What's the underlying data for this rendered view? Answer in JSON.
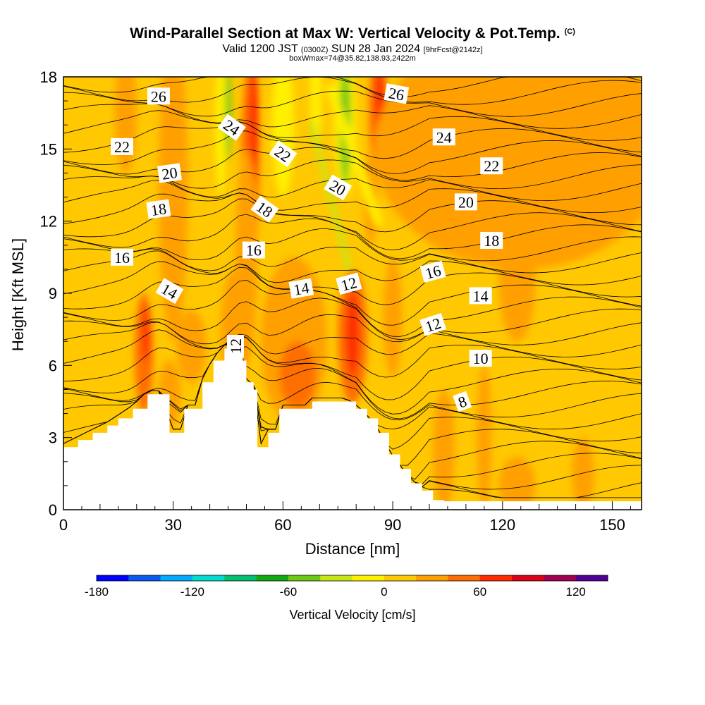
{
  "title": {
    "line1": "Wind-Parallel Section at Max W: Vertical Velocity & Pot.Temp.",
    "copyright": "(C)",
    "line2_main": "Valid 1200 JST ",
    "line2_small1": "(0300Z)",
    "line2_main2": " SUN 28 Jan 2024 ",
    "line2_small2": "[9hrFcst@2142z]",
    "line3": "boxWmax=74@35.82,138.93,2422m"
  },
  "chart_data": {
    "type": "heatmap",
    "xlabel": "Distance [nm]",
    "ylabel": "Height [Kft MSL]",
    "xlim": [
      0,
      158
    ],
    "ylim": [
      0,
      18
    ],
    "xticks": [
      0,
      30,
      60,
      90,
      120,
      150
    ],
    "yticks": [
      0,
      3,
      6,
      9,
      12,
      15,
      18
    ],
    "grid": false,
    "shaded_field": "Vertical Velocity [cm/s]",
    "contour_field": "Potential temperature",
    "colorbar": {
      "label": "Vertical Velocity [cm/s]",
      "ticks": [
        -180,
        -120,
        -60,
        0,
        60,
        120
      ],
      "bins": [
        -180,
        -160,
        -140,
        -120,
        -100,
        -80,
        -60,
        -40,
        -20,
        0,
        20,
        40,
        60,
        80,
        100,
        120,
        140
      ],
      "colors": [
        "#0000ff",
        "#0a5af0",
        "#00aaff",
        "#00ddd0",
        "#00c070",
        "#10aa10",
        "#6ec818",
        "#c8e614",
        "#fff000",
        "#ffc800",
        "#ffa000",
        "#ff6e00",
        "#ff2a00",
        "#dc0019",
        "#a00050",
        "#500096"
      ]
    },
    "terrain_kft": [
      [
        0,
        2.6
      ],
      [
        4,
        2.9
      ],
      [
        8,
        3.2
      ],
      [
        12,
        3.5
      ],
      [
        15,
        3.8
      ],
      [
        19,
        4.2
      ],
      [
        23,
        4.8
      ],
      [
        27,
        4.8
      ],
      [
        29,
        3.2
      ],
      [
        32,
        3.2
      ],
      [
        33,
        4.2
      ],
      [
        36,
        4.2
      ],
      [
        38,
        5.3
      ],
      [
        41,
        6.2
      ],
      [
        44,
        6.7
      ],
      [
        47,
        6.7
      ],
      [
        49,
        6.2
      ],
      [
        50,
        5.3
      ],
      [
        52,
        5.0
      ],
      [
        53,
        2.6
      ],
      [
        55,
        2.6
      ],
      [
        56,
        3.2
      ],
      [
        58,
        3.2
      ],
      [
        59,
        4.2
      ],
      [
        66,
        4.2
      ],
      [
        68,
        4.5
      ],
      [
        77,
        4.5
      ],
      [
        80,
        4.2
      ],
      [
        83,
        3.8
      ],
      [
        86,
        3.2
      ],
      [
        89,
        2.3
      ],
      [
        92,
        1.7
      ],
      [
        95,
        1.1
      ],
      [
        98,
        0.8
      ],
      [
        101,
        0.4
      ],
      [
        104,
        0.35
      ],
      [
        158,
        0.35
      ]
    ],
    "w_cells": [
      {
        "x": 6,
        "y": 15.5,
        "rx": 4,
        "ry": 3.5,
        "w": 10
      },
      {
        "x": 17,
        "y": 16.5,
        "rx": 3,
        "ry": 2.5,
        "w": 20
      },
      {
        "x": 30,
        "y": 13.5,
        "rx": 4,
        "ry": 6.5,
        "w": 20
      },
      {
        "x": 22,
        "y": 6.5,
        "rx": 2.5,
        "ry": 2.5,
        "w": 40
      },
      {
        "x": 22.5,
        "y": 7.3,
        "rx": 1,
        "ry": 1.2,
        "w": 60
      },
      {
        "x": 35,
        "y": 6.8,
        "rx": 4,
        "ry": 1.5,
        "w": 20
      },
      {
        "x": 29,
        "y": 4.8,
        "rx": 3,
        "ry": 1.4,
        "w": 20
      },
      {
        "x": 43,
        "y": 16,
        "rx": 1.5,
        "ry": 3,
        "w": -20
      },
      {
        "x": 45,
        "y": 16.5,
        "rx": 0.8,
        "ry": 2,
        "w": -60
      },
      {
        "x": 51,
        "y": 14,
        "rx": 2.5,
        "ry": 4.5,
        "w": 40
      },
      {
        "x": 52,
        "y": 16,
        "rx": 1.3,
        "ry": 2.5,
        "w": 60
      },
      {
        "x": 50,
        "y": 10.5,
        "rx": 3,
        "ry": 4.5,
        "w": 20
      },
      {
        "x": 47,
        "y": 7.5,
        "rx": 4,
        "ry": 2.5,
        "w": 20
      },
      {
        "x": 63,
        "y": 7,
        "rx": 9,
        "ry": 3.5,
        "w": 20
      },
      {
        "x": 64,
        "y": 5.6,
        "rx": 5,
        "ry": 1.4,
        "w": 40
      },
      {
        "x": 60,
        "y": 16,
        "rx": 3,
        "ry": 3,
        "w": -20
      },
      {
        "x": 69,
        "y": 17,
        "rx": 1.5,
        "ry": 2,
        "w": -20
      },
      {
        "x": 77,
        "y": 16,
        "rx": 3,
        "ry": 3,
        "w": -20
      },
      {
        "x": 77,
        "y": 16,
        "rx": 1.5,
        "ry": 2.5,
        "w": -60
      },
      {
        "x": 86,
        "y": 16.5,
        "rx": 2.5,
        "ry": 2.5,
        "w": 40
      },
      {
        "x": 86.5,
        "y": 17,
        "rx": 1.3,
        "ry": 1.5,
        "w": 60
      },
      {
        "x": 79,
        "y": 7.2,
        "rx": 4,
        "ry": 2.8,
        "w": 40
      },
      {
        "x": 79,
        "y": 7.3,
        "rx": 1.8,
        "ry": 1.8,
        "w": 60
      },
      {
        "x": 84,
        "y": 13,
        "rx": 2,
        "ry": 2,
        "w": 20
      },
      {
        "x": 90,
        "y": 8,
        "rx": 2.5,
        "ry": 2.5,
        "w": 20
      },
      {
        "x": 104,
        "y": 2.5,
        "rx": 3,
        "ry": 2.5,
        "w": 20
      },
      {
        "x": 115,
        "y": 3,
        "rx": 2,
        "ry": 3,
        "w": 20
      },
      {
        "x": 124,
        "y": 1,
        "rx": 5,
        "ry": 1.2,
        "w": 20
      },
      {
        "x": 142,
        "y": 1.5,
        "rx": 3,
        "ry": 1.5,
        "w": 20
      },
      {
        "x": 125,
        "y": 15,
        "rx": 40,
        "ry": 5,
        "w": 20
      },
      {
        "x": 124,
        "y": 9.5,
        "rx": 5,
        "ry": 2.5,
        "w": 20
      }
    ],
    "w_streaks": [
      {
        "x0": 86,
        "y0": 12,
        "x1": 73,
        "y1": 17.5,
        "width": 2.5,
        "w": -20
      },
      {
        "x0": 78,
        "y0": 10,
        "x1": 68,
        "y1": 16,
        "width": 1.5,
        "w": -40
      }
    ],
    "contour_labels": [
      {
        "text": "26",
        "x": 26,
        "y": 17.2,
        "angle": 0
      },
      {
        "text": "26",
        "x": 91,
        "y": 17.3,
        "angle": 10
      },
      {
        "text": "24",
        "x": 46,
        "y": 15.9,
        "angle": 35
      },
      {
        "text": "24",
        "x": 104,
        "y": 15.5,
        "angle": 0
      },
      {
        "text": "22",
        "x": 16,
        "y": 15.1,
        "angle": 0
      },
      {
        "text": "22",
        "x": 60,
        "y": 14.8,
        "angle": 35
      },
      {
        "text": "22",
        "x": 117,
        "y": 14.3,
        "angle": 0
      },
      {
        "text": "20",
        "x": 29,
        "y": 14,
        "angle": -8
      },
      {
        "text": "20",
        "x": 75,
        "y": 13.4,
        "angle": 30
      },
      {
        "text": "20",
        "x": 110,
        "y": 12.8,
        "angle": 0
      },
      {
        "text": "18",
        "x": 26,
        "y": 12.5,
        "angle": -8
      },
      {
        "text": "18",
        "x": 55,
        "y": 12.5,
        "angle": 35
      },
      {
        "text": "18",
        "x": 117,
        "y": 11.2,
        "angle": 0
      },
      {
        "text": "16",
        "x": 16,
        "y": 10.5,
        "angle": 0
      },
      {
        "text": "16",
        "x": 52,
        "y": 10.8,
        "angle": 0
      },
      {
        "text": "16",
        "x": 101,
        "y": 9.9,
        "angle": -15
      },
      {
        "text": "14",
        "x": 29,
        "y": 9.1,
        "angle": 30
      },
      {
        "text": "14",
        "x": 65,
        "y": 9.2,
        "angle": -10
      },
      {
        "text": "14",
        "x": 114,
        "y": 8.9,
        "angle": 0
      },
      {
        "text": "12",
        "x": 78,
        "y": 9.4,
        "angle": -15
      },
      {
        "text": "12",
        "x": 47,
        "y": 6.8,
        "angle": -90
      },
      {
        "text": "12",
        "x": 101,
        "y": 7.7,
        "angle": -18
      },
      {
        "text": "10",
        "x": 114,
        "y": 6.3,
        "angle": 0
      },
      {
        "text": "8",
        "x": 109,
        "y": 4.5,
        "angle": -20
      }
    ]
  }
}
